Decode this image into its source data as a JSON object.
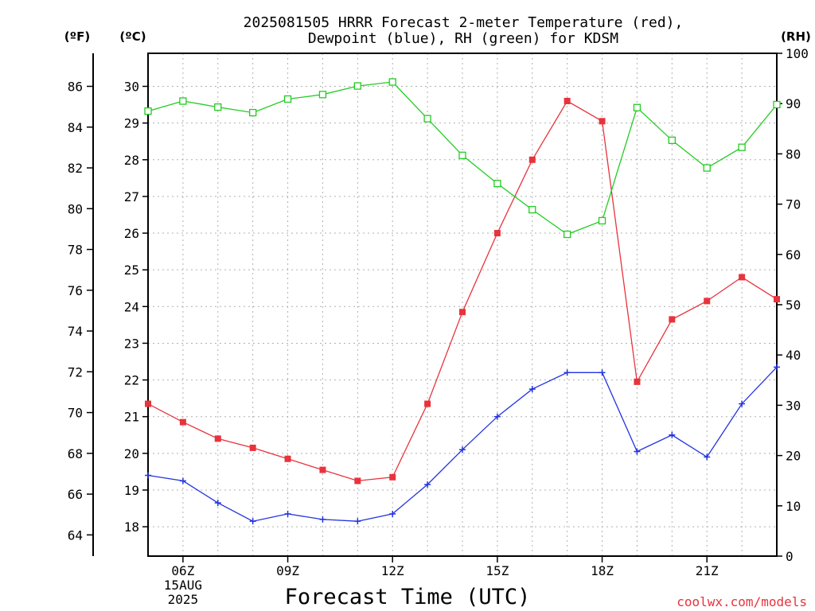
{
  "title_line1": "2025081505 HRRR Forecast 2-meter Temperature (red),",
  "title_line2": "Dewpoint (blue), RH (green) for KDSM",
  "credit": "coolwx.com/models",
  "colors": {
    "temperature": "#e8333c",
    "dewpoint": "#2233e0",
    "rh": "#22cc22"
  },
  "chart_data": {
    "type": "line",
    "title": "2025081505 HRRR Forecast 2-meter Temperature (red), Dewpoint (blue), RH (green) for KDSM",
    "xlabel": "Forecast Time (UTC)",
    "x": [
      5,
      6,
      7,
      8,
      9,
      10,
      11,
      12,
      13,
      14,
      15,
      16,
      17,
      18,
      19,
      20,
      21,
      22,
      23
    ],
    "xlim": [
      5,
      23
    ],
    "x_ticks": [
      {
        "x": 6,
        "label": "06Z",
        "date_label": "15AUG",
        "year_label": "2025"
      },
      {
        "x": 9,
        "label": "09Z"
      },
      {
        "x": 12,
        "label": "12Z"
      },
      {
        "x": 15,
        "label": "15Z"
      },
      {
        "x": 18,
        "label": "18Z"
      },
      {
        "x": 21,
        "label": "21Z"
      }
    ],
    "axes": {
      "fahrenheit": {
        "unit_label": "(ºF)",
        "ticks": [
          64,
          66,
          68,
          70,
          72,
          74,
          76,
          78,
          80,
          82,
          84,
          86
        ]
      },
      "celsius": {
        "unit_label": "(ºC)",
        "ylim": [
          17.2,
          30.9
        ],
        "ticks": [
          18,
          19,
          20,
          21,
          22,
          23,
          24,
          25,
          26,
          27,
          28,
          29,
          30
        ]
      },
      "rh": {
        "unit_label": "(RH)",
        "ylim": [
          0,
          100
        ],
        "ticks": [
          0,
          10,
          20,
          30,
          40,
          50,
          60,
          70,
          80,
          90,
          100
        ]
      }
    },
    "grid": true,
    "series": [
      {
        "key": "temperature",
        "axis": "celsius",
        "marker": "filled-square",
        "values": [
          21.35,
          20.85,
          20.4,
          20.15,
          19.85,
          19.55,
          19.25,
          19.35,
          21.35,
          23.85,
          26.0,
          28.0,
          29.6,
          29.05,
          21.95,
          23.65,
          24.15,
          24.8,
          24.2
        ]
      },
      {
        "key": "dewpoint",
        "axis": "celsius",
        "marker": "plus",
        "values": [
          19.4,
          19.25,
          18.65,
          18.15,
          18.35,
          18.2,
          18.15,
          18.35,
          19.15,
          20.1,
          21.0,
          21.75,
          22.2,
          22.2,
          20.05,
          20.5,
          19.9,
          21.35,
          22.35
        ]
      },
      {
        "key": "rh",
        "axis": "rh",
        "marker": "open-square",
        "values": [
          88.5,
          90.5,
          89.3,
          88.2,
          90.9,
          91.8,
          93.5,
          94.3,
          87.0,
          79.7,
          74.1,
          68.9,
          64.0,
          66.7,
          89.2,
          82.7,
          77.2,
          81.3,
          89.8
        ]
      }
    ]
  }
}
